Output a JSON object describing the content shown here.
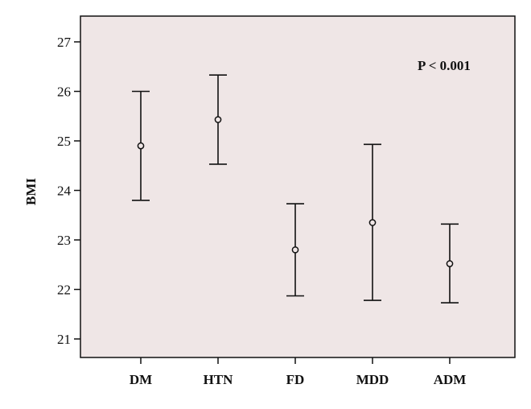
{
  "chart_data": {
    "type": "scatter",
    "subtype": "error-bar",
    "title": "",
    "xlabel": "",
    "ylabel": "BMI",
    "ylim": [
      21,
      27
    ],
    "yticks": [
      21,
      22,
      23,
      24,
      25,
      26,
      27
    ],
    "categories": [
      "DM",
      "HTN",
      "FD",
      "MDD",
      "ADM"
    ],
    "series": [
      {
        "means": [
          24.9,
          25.43,
          22.8,
          23.35,
          22.52
        ],
        "lower": [
          23.8,
          24.53,
          21.87,
          21.78,
          21.73
        ],
        "upper": [
          26.0,
          26.33,
          23.73,
          24.93,
          23.32
        ]
      }
    ],
    "annotation": "P < 0.001",
    "grid": false,
    "plot_background": "#efe6e6",
    "line_color": "#111111"
  }
}
